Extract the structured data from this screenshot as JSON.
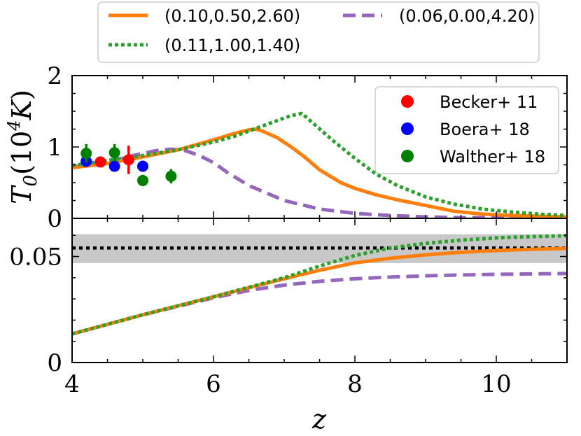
{
  "chart_data": [
    {
      "type": "line",
      "panel": "top",
      "ylabel": "T_0(10^4 K)",
      "ylabel_parts": {
        "main": "T",
        "sub": "0",
        "open": "(10",
        "sup": "4",
        "unit": "K",
        "close": ")"
      },
      "xlim": [
        4,
        11
      ],
      "ylim": [
        0,
        2
      ],
      "yticks": [
        0,
        1,
        2
      ],
      "ytick_labels": [
        "0",
        "1",
        "2"
      ],
      "series": [
        {
          "name": "(0.10,0.50,2.60)",
          "color": "#ff7f0e",
          "style": "solid",
          "x": [
            4.0,
            4.5,
            5.0,
            5.5,
            6.0,
            6.3,
            6.5,
            6.6,
            6.7,
            6.9,
            7.1,
            7.3,
            7.5,
            7.8,
            8.0,
            8.3,
            8.6,
            9.0,
            9.4,
            9.8,
            10.2,
            10.6,
            11.0
          ],
          "y": [
            0.71,
            0.77,
            0.86,
            0.96,
            1.1,
            1.19,
            1.24,
            1.25,
            1.22,
            1.13,
            1.0,
            0.85,
            0.68,
            0.5,
            0.42,
            0.33,
            0.26,
            0.18,
            0.1,
            0.06,
            0.04,
            0.03,
            0.02
          ]
        },
        {
          "name": "(0.11,1.00,1.40)",
          "color": "#2ca02c",
          "style": "dotted",
          "x": [
            4.0,
            4.5,
            5.0,
            5.5,
            6.0,
            6.3,
            6.6,
            6.9,
            7.1,
            7.25,
            7.4,
            7.7,
            8.0,
            8.3,
            8.6,
            9.0,
            9.4,
            9.8,
            10.2,
            10.6,
            11.0
          ],
          "y": [
            0.74,
            0.81,
            0.88,
            0.96,
            1.07,
            1.15,
            1.26,
            1.37,
            1.44,
            1.47,
            1.34,
            1.08,
            0.84,
            0.62,
            0.46,
            0.3,
            0.2,
            0.13,
            0.09,
            0.06,
            0.04
          ]
        },
        {
          "name": "(0.06,0.00,4.20)",
          "color": "#9467bd",
          "style": "dashed",
          "x": [
            4.0,
            4.5,
            5.0,
            5.2,
            5.4,
            5.6,
            5.8,
            6.0,
            6.2,
            6.5,
            7.0,
            7.5,
            8.0,
            8.5,
            9.0,
            9.5,
            10.0,
            10.5,
            11.0
          ],
          "y": [
            0.72,
            0.8,
            0.91,
            0.95,
            0.97,
            0.95,
            0.88,
            0.78,
            0.64,
            0.46,
            0.25,
            0.13,
            0.07,
            0.04,
            0.02,
            0.01,
            0.01,
            0.0,
            0.0
          ]
        }
      ],
      "observations": [
        {
          "name": "Becker+ 11",
          "color": "#ff0000",
          "points": [
            {
              "x": 4.4,
              "y": 0.79,
              "err": 0.06
            },
            {
              "x": 4.8,
              "y": 0.82,
              "err": 0.2
            }
          ]
        },
        {
          "name": "Boera+ 18",
          "color": "#0000ff",
          "points": [
            {
              "x": 4.2,
              "y": 0.8,
              "err": 0.08
            },
            {
              "x": 4.6,
              "y": 0.73,
              "err": 0.07
            },
            {
              "x": 5.0,
              "y": 0.73,
              "err": 0.07
            }
          ]
        },
        {
          "name": "Walther+ 18",
          "color": "#008000",
          "points": [
            {
              "x": 4.2,
              "y": 0.91,
              "err": 0.13
            },
            {
              "x": 4.6,
              "y": 0.92,
              "err": 0.12
            },
            {
              "x": 5.0,
              "y": 0.53,
              "err": 0.08
            },
            {
              "x": 5.4,
              "y": 0.59,
              "err": 0.1
            }
          ]
        }
      ],
      "legend": {
        "location": "upper right",
        "entries": [
          "Becker+ 11",
          "Boera+ 18",
          "Walther+ 18"
        ]
      }
    },
    {
      "type": "line",
      "panel": "bottom",
      "xlabel": "z",
      "xlim": [
        4,
        11
      ],
      "ylim": [
        0,
        0.068
      ],
      "yticks": [
        0,
        0.05
      ],
      "ytick_labels": [
        "0",
        "0.05"
      ],
      "xticks": [
        4,
        6,
        8,
        10
      ],
      "xtick_labels": [
        "4",
        "6",
        "8",
        "10"
      ],
      "reference": {
        "value": 0.054,
        "band": [
          0.0469,
          0.0605
        ],
        "line_color": "#000000",
        "band_color": "#c8c8c8"
      },
      "series": [
        {
          "name": "(0.10,0.50,2.60)",
          "color": "#ff7f0e",
          "style": "solid",
          "x": [
            4.0,
            5.0,
            6.0,
            7.0,
            7.5,
            8.0,
            8.5,
            9.0,
            9.5,
            10.0,
            10.5,
            11.0
          ],
          "y": [
            0.0135,
            0.0225,
            0.031,
            0.0395,
            0.0435,
            0.047,
            0.0492,
            0.0508,
            0.052,
            0.0528,
            0.0534,
            0.0538
          ]
        },
        {
          "name": "(0.11,1.00,1.40)",
          "color": "#2ca02c",
          "style": "dotted",
          "x": [
            4.0,
            5.0,
            6.0,
            6.5,
            7.0,
            7.5,
            8.0,
            8.5,
            9.0,
            9.5,
            10.0,
            10.5,
            11.0
          ],
          "y": [
            0.0135,
            0.0225,
            0.031,
            0.0355,
            0.04,
            0.0455,
            0.0505,
            0.054,
            0.0562,
            0.0577,
            0.0588,
            0.0594,
            0.0598
          ]
        },
        {
          "name": "(0.06,0.00,4.20)",
          "color": "#9467bd",
          "style": "dashed",
          "x": [
            4.0,
            5.0,
            6.0,
            6.5,
            7.0,
            7.5,
            8.0,
            8.5,
            9.0,
            9.5,
            10.0,
            10.5,
            11.0
          ],
          "y": [
            0.0135,
            0.0225,
            0.0305,
            0.034,
            0.0365,
            0.0383,
            0.0395,
            0.0403,
            0.0409,
            0.0413,
            0.0416,
            0.0418,
            0.042
          ]
        }
      ]
    }
  ],
  "figure_legend": {
    "entries": [
      {
        "label": "(0.10,0.50,2.60)",
        "color": "#ff7f0e",
        "style": "solid"
      },
      {
        "label": "(0.06,0.00,4.20)",
        "color": "#9467bd",
        "style": "dashed"
      },
      {
        "label": "(0.11,1.00,1.40)",
        "color": "#2ca02c",
        "style": "dotted"
      }
    ]
  }
}
